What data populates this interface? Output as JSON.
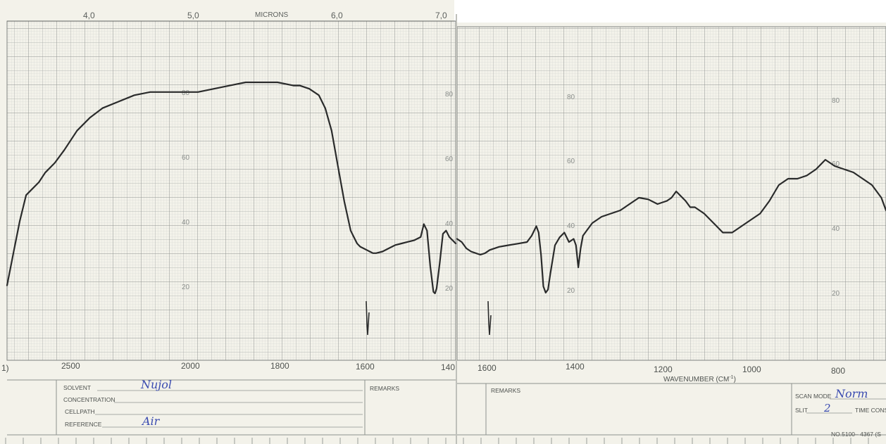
{
  "colors": {
    "paper": "#f3f2ea",
    "grid_minor": "#c9cbc8",
    "grid_major": "#9da19e",
    "ink": "#2a2b2b",
    "print": "#5c605d",
    "handwriting": "#3a4bb0"
  },
  "top_axis": {
    "title": "MICRONS",
    "ticks": [
      "4,0",
      "5,0",
      "6,0",
      "7,0"
    ]
  },
  "left_panel": {
    "wavenumber_ticks": [
      "1)",
      "2500",
      "2000",
      "1800",
      "1600",
      "140"
    ],
    "transmittance_ticks": [
      "80",
      "60",
      "40",
      "20"
    ],
    "edge_transmittance_ticks": [
      "80",
      "60",
      "40",
      "20"
    ]
  },
  "right_panel": {
    "wavenumber_ticks": [
      "1600",
      "1400",
      "1200",
      "1000",
      "800"
    ],
    "axis_title": "WAVENUMBER  (CM",
    "axis_title_sup": "-1",
    "axis_title_close": ")",
    "transmittance_ticks_a": [
      "80",
      "60",
      "40",
      "20"
    ],
    "transmittance_ticks_b": [
      "80",
      "60",
      "40",
      "20"
    ]
  },
  "form": {
    "solvent_label": "SOLVENT",
    "solvent_value": "Nujol",
    "concentration_label": "CONCENTRATION",
    "cellpath_label": "CELLPATH",
    "reference_label": "REFERENCE",
    "reference_value": "Air",
    "remarks_left_label": "REMARKS",
    "remarks_right_label": "REMARKS",
    "scan_mode_label": "SCAN MODE",
    "scan_mode_value": "Norm",
    "slit_label": "SLIT",
    "slit_value": "2",
    "time_const_label": "TIME CONS",
    "form_number": "NO.5100– 4367 (S"
  },
  "chart_data": {
    "type": "line",
    "title": "",
    "xlabel": "WAVENUMBER (CM-1)",
    "ylabel": "",
    "x_top_label": "MICRONS",
    "ylim": [
      0,
      100
    ],
    "grid": true,
    "series": [
      {
        "panel": "left",
        "xlim": [
          2800,
          1390
        ],
        "x": [
          2800,
          2780,
          2760,
          2740,
          2720,
          2700,
          2680,
          2650,
          2620,
          2580,
          2540,
          2500,
          2450,
          2400,
          2350,
          2300,
          2250,
          2200,
          2150,
          2100,
          2050,
          2000,
          1950,
          1900,
          1880,
          1850,
          1820,
          1800,
          1780,
          1760,
          1740,
          1720,
          1710,
          1700,
          1690,
          1680,
          1670,
          1660,
          1650,
          1640,
          1620,
          1600,
          1580,
          1560,
          1540,
          1520,
          1500,
          1490,
          1480,
          1470,
          1460,
          1455,
          1450,
          1440,
          1430,
          1420,
          1410,
          1400,
          1390
        ],
        "y": [
          18,
          28,
          38,
          46,
          48,
          50,
          53,
          56,
          60,
          66,
          70,
          73,
          75,
          77,
          78,
          78,
          78,
          78,
          79,
          80,
          81,
          81,
          81,
          80,
          80,
          79,
          77,
          73,
          66,
          55,
          44,
          35,
          33,
          31,
          30,
          29.5,
          29,
          28.5,
          28,
          28,
          28.5,
          29.5,
          30.5,
          31,
          31.5,
          32,
          33,
          37,
          35,
          24,
          16,
          15.5,
          17,
          25,
          34,
          35,
          33,
          32,
          31
        ]
      },
      {
        "panel": "right",
        "xlim": [
          1650,
          730
        ],
        "x": [
          1650,
          1640,
          1630,
          1620,
          1610,
          1600,
          1590,
          1580,
          1560,
          1540,
          1520,
          1500,
          1490,
          1480,
          1475,
          1470,
          1465,
          1460,
          1455,
          1450,
          1440,
          1430,
          1420,
          1410,
          1400,
          1395,
          1390,
          1385,
          1380,
          1375,
          1370,
          1360,
          1340,
          1320,
          1300,
          1280,
          1260,
          1240,
          1220,
          1200,
          1190,
          1180,
          1160,
          1150,
          1140,
          1130,
          1120,
          1100,
          1080,
          1060,
          1050,
          1040,
          1020,
          1000,
          980,
          960,
          940,
          920,
          900,
          880,
          860,
          840,
          820,
          800,
          780,
          760,
          740,
          730
        ],
        "y": [
          33,
          32,
          30,
          29,
          28.5,
          28,
          28.5,
          29.5,
          30.5,
          31,
          31.5,
          32,
          34,
          37,
          35,
          28,
          18,
          16,
          17,
          22,
          31,
          33.5,
          35,
          32,
          33,
          31,
          24,
          30,
          34,
          35,
          36,
          38,
          40,
          41,
          42,
          44,
          46,
          45.5,
          44,
          45,
          46,
          48,
          45,
          43,
          43,
          42,
          41,
          38,
          35,
          35,
          36,
          37,
          39,
          41,
          45,
          50,
          52,
          52,
          53,
          55,
          58,
          56,
          55,
          54,
          52,
          50,
          46,
          42
        ]
      }
    ],
    "left_wavenumber_ticks": [
      2500,
      2000,
      1800,
      1600,
      1400
    ],
    "right_wavenumber_ticks": [
      1600,
      1400,
      1200,
      1000,
      800
    ],
    "transmittance_ticks": [
      20,
      40,
      60,
      80
    ],
    "markers": [
      1601,
      1601
    ]
  }
}
